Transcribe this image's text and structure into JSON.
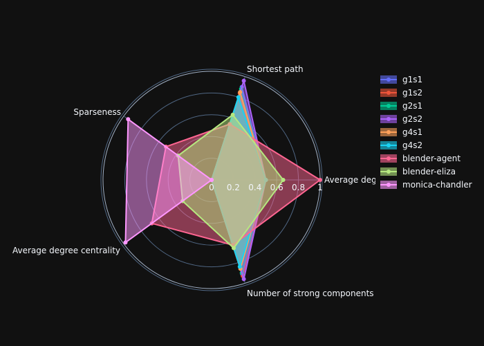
{
  "chart_data": {
    "type": "radar",
    "axes": [
      "Average degree",
      "Shortest path",
      "Sparseness",
      "Average degree centrality",
      "Number of strong components"
    ],
    "axis_label_visible": [
      "Average deg",
      "Shortest path",
      "Sparseness",
      "Average degree centrality",
      "Number of strong components"
    ],
    "radial_range": [
      0,
      1
    ],
    "radial_ticks": [
      "0",
      "0.2",
      "0.4",
      "0.6",
      "0.8",
      "1"
    ],
    "series": [
      {
        "name": "g1s1",
        "color": "#636efa",
        "values": [
          0.5,
          0.9,
          0.0,
          0.0,
          0.91
        ]
      },
      {
        "name": "g1s2",
        "color": "#ef553b",
        "values": [
          0.5,
          0.84,
          0.0,
          0.0,
          0.93
        ]
      },
      {
        "name": "g2s1",
        "color": "#00cc96",
        "values": [
          0.5,
          0.88,
          0.0,
          0.0,
          0.9
        ]
      },
      {
        "name": "g2s2",
        "color": "#ab63fa",
        "values": [
          0.5,
          0.96,
          0.0,
          0.0,
          0.96
        ]
      },
      {
        "name": "g4s1",
        "color": "#ffa15a",
        "values": [
          0.5,
          0.85,
          0.0,
          0.0,
          0.86
        ]
      },
      {
        "name": "g4s2",
        "color": "#19d3f3",
        "values": [
          0.5,
          0.8,
          0.0,
          0.0,
          0.84
        ]
      },
      {
        "name": "blender-agent",
        "color": "#ff6692",
        "values": [
          1.0,
          0.54,
          0.52,
          0.68,
          0.63
        ]
      },
      {
        "name": "blender-eliza",
        "color": "#b6e880",
        "values": [
          0.66,
          0.63,
          0.38,
          0.33,
          0.66
        ]
      },
      {
        "name": "monica-chandler",
        "color": "#ff97ff",
        "values": [
          0.0,
          0.0,
          0.95,
          0.98,
          0.0
        ]
      }
    ],
    "legend_position": "right"
  }
}
